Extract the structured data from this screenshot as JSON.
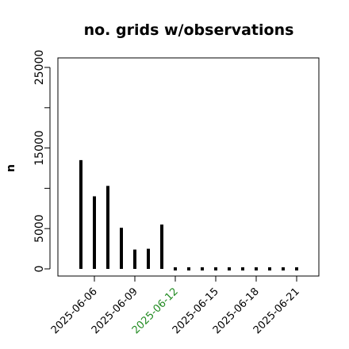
{
  "chart_data": {
    "type": "bar",
    "title": "no. grids w/observations",
    "ylabel": "n",
    "xlabel": "",
    "ylim": [
      0,
      26000
    ],
    "yticks": [
      0,
      5000,
      15000,
      25000
    ],
    "yminor": [
      10000,
      20000
    ],
    "x": [
      "2025-06-05",
      "2025-06-06",
      "2025-06-07",
      "2025-06-08",
      "2025-06-09",
      "2025-06-10",
      "2025-06-11",
      "2025-06-12",
      "2025-06-13",
      "2025-06-14",
      "2025-06-15",
      "2025-06-16",
      "2025-06-17",
      "2025-06-18",
      "2025-06-19",
      "2025-06-20",
      "2025-06-21"
    ],
    "values": [
      13500,
      9000,
      10300,
      5100,
      2400,
      2500,
      5500,
      0,
      0,
      0,
      0,
      0,
      0,
      0,
      0,
      0,
      0
    ],
    "xtick_labels": [
      "2025-06-06",
      "2025-06-09",
      "2025-06-12",
      "2025-06-15",
      "2025-06-18",
      "2025-06-21"
    ],
    "highlight_tick": "2025-06-12",
    "colors": {
      "bar": "#000000",
      "highlight_tick": "#228B22",
      "tick": "#000000"
    },
    "grid": false,
    "legend": "none"
  }
}
